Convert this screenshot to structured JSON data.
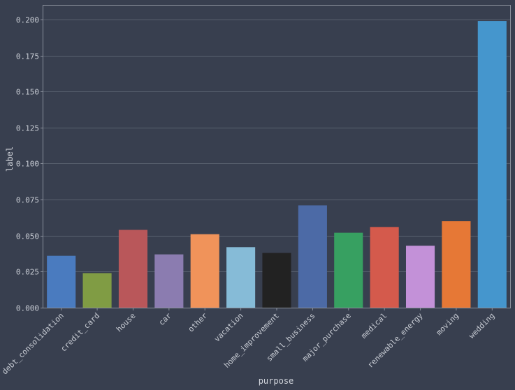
{
  "chart_data": {
    "type": "bar",
    "title": "",
    "xlabel": "purpose",
    "ylabel": "label",
    "ylim": [
      0,
      0.21
    ],
    "yticks": [
      "0.000",
      "0.025",
      "0.050",
      "0.075",
      "0.100",
      "0.125",
      "0.150",
      "0.175",
      "0.200"
    ],
    "ytick_values": [
      0,
      0.025,
      0.05,
      0.075,
      0.1,
      0.125,
      0.15,
      0.175,
      0.2
    ],
    "grid": true,
    "legend": "none",
    "categories": [
      "debt_consolidation",
      "credit_card",
      "house",
      "car",
      "other",
      "vacation",
      "home_improvement",
      "small_business",
      "major_purchase",
      "medical",
      "renewable_energy",
      "moving",
      "wedding"
    ],
    "values": [
      0.036,
      0.024,
      0.054,
      0.037,
      0.051,
      0.042,
      0.038,
      0.071,
      0.052,
      0.056,
      0.043,
      0.06,
      0.199
    ],
    "colors": [
      "#4a7bbf",
      "#809c44",
      "#b9575a",
      "#8b7cb0",
      "#f0935a",
      "#86bbd7",
      "#222222",
      "#4c6aa6",
      "#37a061",
      "#d45a4c",
      "#c391d8",
      "#e67836",
      "#4596cd"
    ]
  }
}
